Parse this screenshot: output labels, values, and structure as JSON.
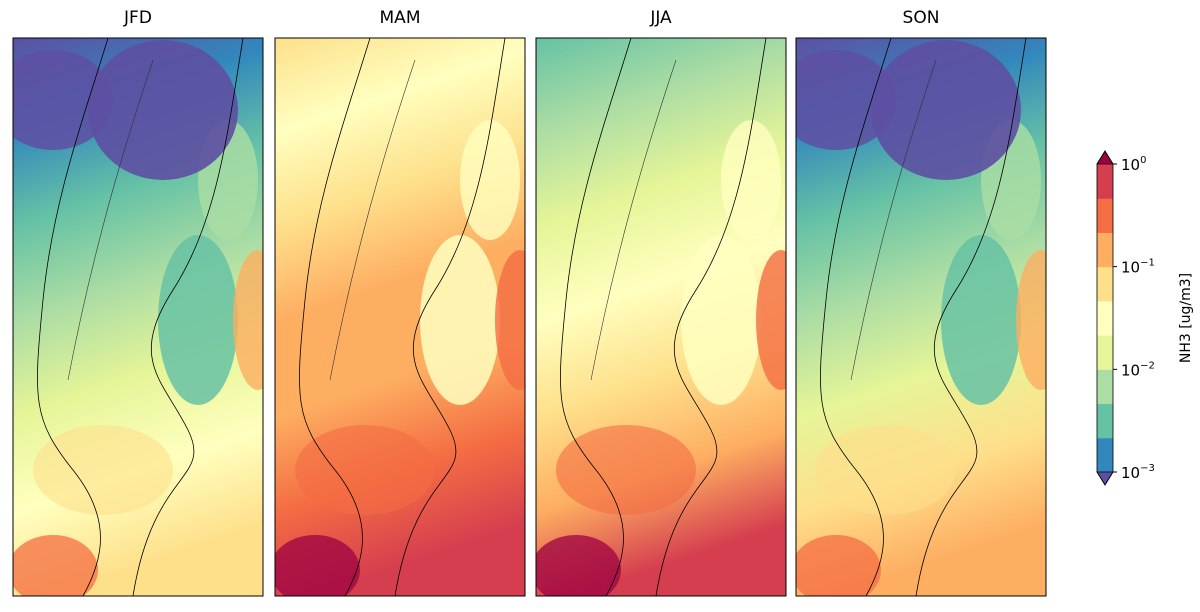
{
  "panels": [
    {
      "title": "JFD",
      "gradient": [
        "#5e4fa2",
        "#3288bd",
        "#66c2a5",
        "#abdda4",
        "#e6f598",
        "#ffffbf",
        "#fee08b"
      ]
    },
    {
      "title": "MAM",
      "gradient": [
        "#fee08b",
        "#ffffbf",
        "#fee08b",
        "#fdae61",
        "#fdae61",
        "#f46d43",
        "#d53e4f"
      ]
    },
    {
      "title": "JJA",
      "gradient": [
        "#66c2a5",
        "#abdda4",
        "#e6f598",
        "#ffffbf",
        "#fee08b",
        "#fdae61",
        "#d53e4f"
      ]
    },
    {
      "title": "SON",
      "gradient": [
        "#5e4fa2",
        "#3288bd",
        "#66c2a5",
        "#abdda4",
        "#e6f598",
        "#fee08b",
        "#fdae61"
      ]
    }
  ],
  "colorbar": {
    "label": "NH3 [ug/m3]",
    "scale": "log",
    "range": [
      0.001,
      1
    ],
    "extend": "both",
    "ticks": [
      {
        "value": 1,
        "base": "10",
        "exp": "0"
      },
      {
        "value": 0.1,
        "base": "10",
        "exp": "−1"
      },
      {
        "value": 0.01,
        "base": "10",
        "exp": "−2"
      },
      {
        "value": 0.001,
        "base": "10",
        "exp": "−3"
      }
    ],
    "colors": [
      "#3288bd",
      "#66c2a5",
      "#abdda4",
      "#e6f598",
      "#ffffbf",
      "#fee08b",
      "#fdae61",
      "#f46d43",
      "#d53e4f"
    ],
    "under_color": "#5e4fa2",
    "over_color": "#9e0142"
  }
}
